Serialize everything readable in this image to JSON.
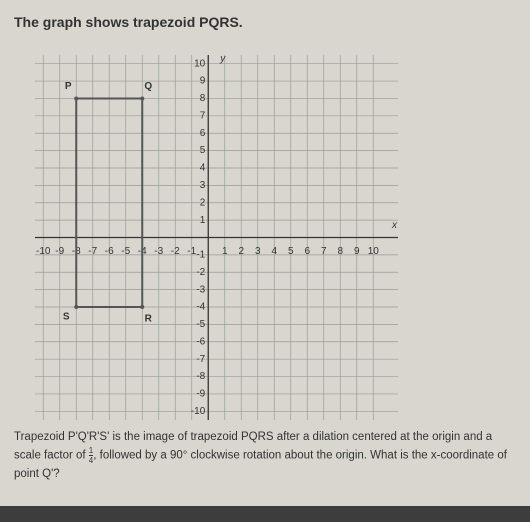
{
  "question": {
    "intro": "The graph shows trapezoid PQRS.",
    "text_before": "Trapezoid P'Q'R'S' is the image of trapezoid PQRS after a dilation centered at the origin and a scale factor of",
    "fraction_numerator": "1",
    "fraction_denominator": "4",
    "text_after": ", followed by a 90° clockwise rotation about the origin. What is the x-coordinate of point Q'?"
  },
  "chart_data": {
    "type": "polygon",
    "labels": [
      "P",
      "Q",
      "R",
      "S"
    ],
    "x": [
      -8,
      -4,
      -4,
      -8
    ],
    "y": [
      8,
      8,
      -4,
      -4
    ],
    "color": "#555",
    "x_axis_label": "x",
    "y_axis_label": "y",
    "xlim": [
      -10.5,
      11.5
    ],
    "ylim": [
      -10.5,
      10.5
    ],
    "xticks": [
      -10,
      -9,
      -8,
      -7,
      -6,
      -5,
      -4,
      -3,
      -2,
      -1,
      1,
      2,
      3,
      4,
      5,
      6,
      7,
      8,
      9,
      10
    ],
    "yticks": [
      -10,
      -9,
      -8,
      -7,
      -6,
      -5,
      -4,
      -3,
      -2,
      -1,
      1,
      2,
      3,
      4,
      5,
      6,
      7,
      8,
      9,
      10
    ],
    "grid": true
  }
}
